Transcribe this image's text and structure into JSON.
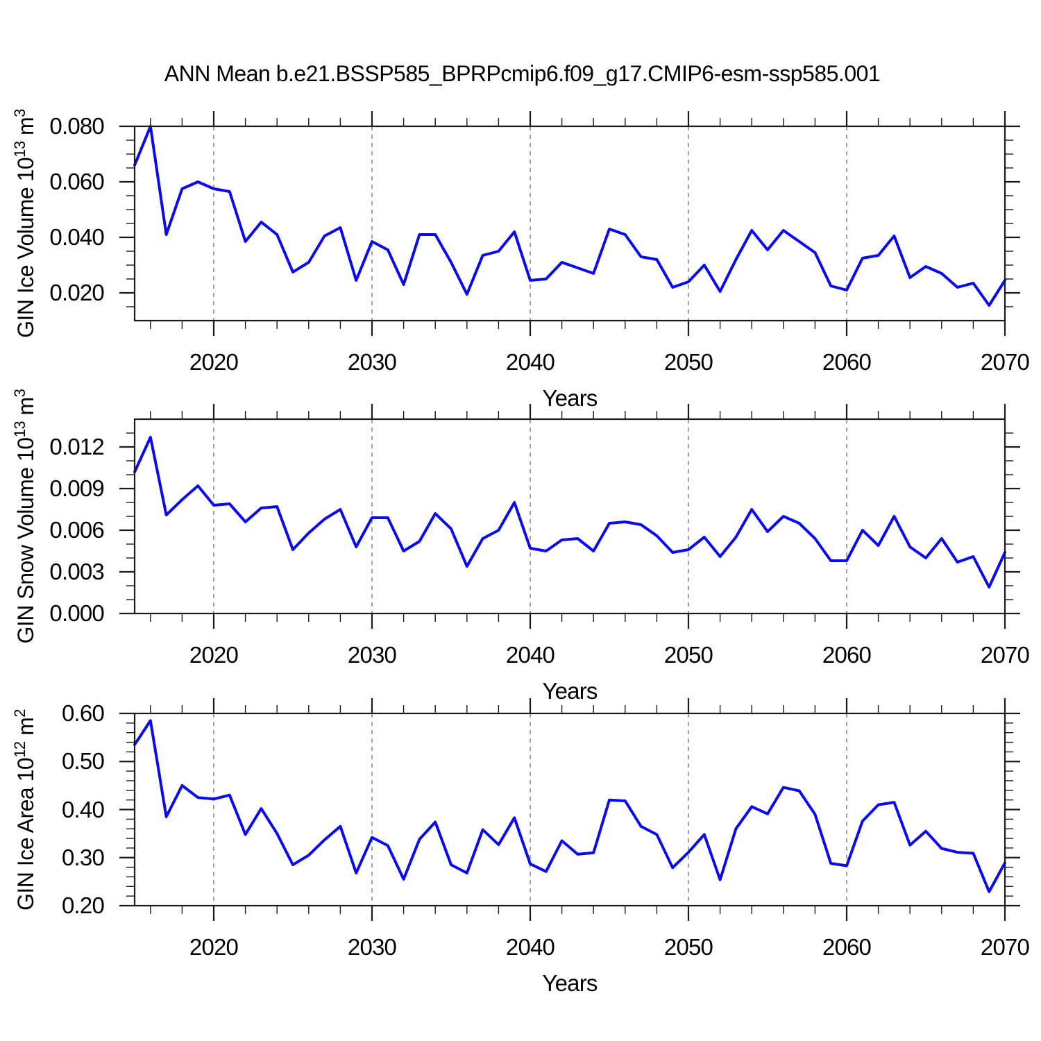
{
  "chart_data": {
    "type": "line",
    "title": "ANN Mean b.e21.BSSP585_BPRPcmip6.f09_g17.CMIP6-esm-ssp585.001",
    "xlabel": "Years",
    "x_range": [
      2015,
      2070
    ],
    "x_ticks_major": [
      2020,
      2030,
      2040,
      2050,
      2060,
      2070
    ],
    "x_minor_step": 2,
    "gridlines_x": [
      2020,
      2030,
      2040,
      2050,
      2060
    ],
    "grid_style": "dashed",
    "legend": "none",
    "line_color": "#0a0af2",
    "frame_color": "#1a1a1a",
    "grid_color": "#999999",
    "panels": [
      {
        "name": "gin-ice-volume",
        "ylabel_parts": [
          {
            "t": "GIN Ice Volume 10"
          },
          {
            "sup": "13"
          },
          {
            "t": " m"
          },
          {
            "sup": "3"
          }
        ],
        "ylim": [
          0.01,
          0.08
        ],
        "y_ticks_major": [
          0.02,
          0.04,
          0.06,
          0.08
        ],
        "y_tick_labels": [
          "0.020",
          "0.040",
          "0.060",
          "0.080"
        ],
        "y_minor_step": 0.005,
        "values": [
          0.066,
          0.08,
          0.041,
          0.0575,
          0.06,
          0.0575,
          0.0565,
          0.0385,
          0.0455,
          0.041,
          0.0275,
          0.031,
          0.0405,
          0.0435,
          0.0245,
          0.0385,
          0.0355,
          0.023,
          0.041,
          0.041,
          0.031,
          0.0195,
          0.0335,
          0.035,
          0.042,
          0.0245,
          0.025,
          0.031,
          0.029,
          0.027,
          0.043,
          0.041,
          0.033,
          0.032,
          0.022,
          0.024,
          0.03,
          0.0205,
          0.032,
          0.0425,
          0.0355,
          0.0425,
          0.0385,
          0.0345,
          0.0225,
          0.021,
          0.0325,
          0.0335,
          0.0405,
          0.0255,
          0.0295,
          0.027,
          0.022,
          0.0235,
          0.0155,
          0.0245
        ]
      },
      {
        "name": "gin-snow-volume",
        "ylabel_parts": [
          {
            "t": "GIN Snow Volume 10"
          },
          {
            "sup": "13"
          },
          {
            "t": " m"
          },
          {
            "sup": "3"
          }
        ],
        "ylim": [
          0.0,
          0.014
        ],
        "y_ticks_major": [
          0.0,
          0.003,
          0.006,
          0.009,
          0.012
        ],
        "y_tick_labels": [
          "0.000",
          "0.003",
          "0.006",
          "0.009",
          "0.012"
        ],
        "y_minor_step": 0.001,
        "values": [
          0.0102,
          0.0127,
          0.0071,
          0.0082,
          0.0092,
          0.0078,
          0.0079,
          0.0066,
          0.0076,
          0.0077,
          0.0046,
          0.0058,
          0.0068,
          0.0075,
          0.0048,
          0.0069,
          0.0069,
          0.0045,
          0.0052,
          0.0072,
          0.0061,
          0.0034,
          0.0054,
          0.006,
          0.008,
          0.0047,
          0.0045,
          0.0053,
          0.0054,
          0.0045,
          0.0065,
          0.0066,
          0.0064,
          0.0056,
          0.0044,
          0.0046,
          0.0055,
          0.0041,
          0.0055,
          0.0075,
          0.0059,
          0.007,
          0.0065,
          0.0054,
          0.0038,
          0.0038,
          0.006,
          0.0049,
          0.007,
          0.0048,
          0.004,
          0.0054,
          0.0037,
          0.0041,
          0.0019,
          0.0044
        ]
      },
      {
        "name": "gin-ice-area",
        "ylabel_parts": [
          {
            "t": "GIN Ice Area 10"
          },
          {
            "sup": "12"
          },
          {
            "t": " m"
          },
          {
            "sup": "2"
          }
        ],
        "ylim": [
          0.2,
          0.6
        ],
        "y_ticks_major": [
          0.2,
          0.3,
          0.4,
          0.5,
          0.6
        ],
        "y_tick_labels": [
          "0.20",
          "0.30",
          "0.40",
          "0.50",
          "0.60"
        ],
        "y_minor_step": 0.02,
        "values": [
          0.535,
          0.585,
          0.385,
          0.45,
          0.425,
          0.422,
          0.43,
          0.348,
          0.402,
          0.35,
          0.285,
          0.305,
          0.337,
          0.365,
          0.268,
          0.342,
          0.325,
          0.255,
          0.338,
          0.374,
          0.285,
          0.268,
          0.358,
          0.327,
          0.383,
          0.287,
          0.271,
          0.335,
          0.307,
          0.31,
          0.42,
          0.418,
          0.365,
          0.348,
          0.279,
          0.311,
          0.348,
          0.254,
          0.36,
          0.406,
          0.391,
          0.446,
          0.439,
          0.39,
          0.288,
          0.283,
          0.376,
          0.41,
          0.415,
          0.326,
          0.355,
          0.319,
          0.311,
          0.309,
          0.229,
          0.289
        ]
      }
    ]
  }
}
